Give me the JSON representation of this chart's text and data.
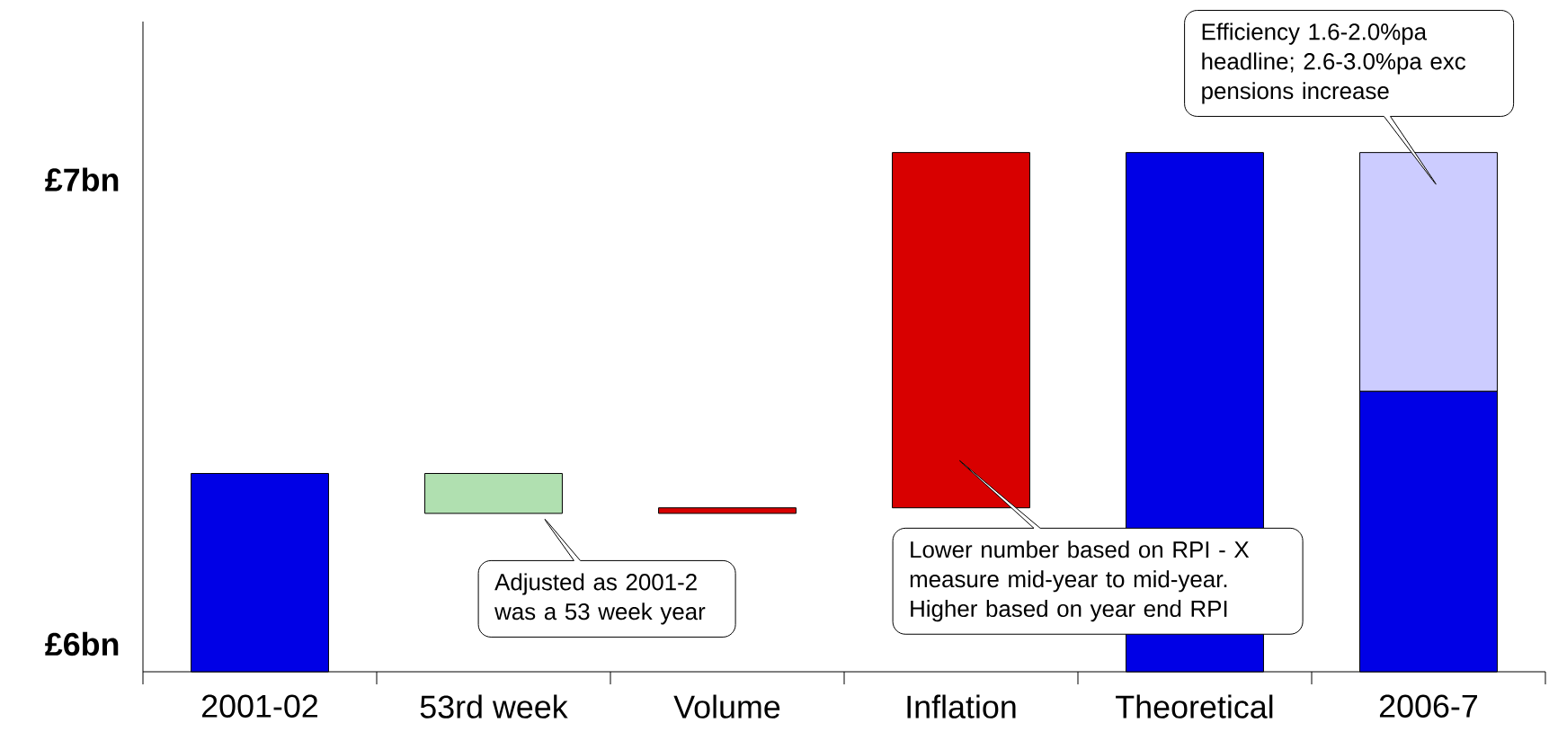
{
  "chart_data": {
    "type": "bar",
    "categories": [
      "2001-02",
      "53rd week",
      "Volume",
      "Inflation",
      "Theoretical",
      "2006-7"
    ],
    "ylim": [
      5.94,
      7.34
    ],
    "yticks": [
      {
        "value": 6,
        "label": "£6bn"
      },
      {
        "value": 7,
        "label": "£7bn"
      }
    ],
    "series": [
      {
        "values": [
          6.367,
          -0.086,
          0.012,
          0.765,
          7.058,
          6.544
        ],
        "colors": [
          "#0000e6",
          "#b0e0b0",
          "#d80000",
          "#d80000",
          "#0000e6",
          "#0000e6"
        ],
        "base": [
          null,
          6.367,
          6.281,
          6.293,
          null,
          null
        ]
      },
      {
        "values": [
          null,
          null,
          null,
          null,
          null,
          0.514
        ],
        "color": "#ccccff",
        "base": [
          null,
          null,
          null,
          null,
          null,
          6.544
        ]
      }
    ],
    "annotations": [
      "Adjusted as 2001-2 was a 53 week year",
      "Lower number based on RPI - X measure mid-year to mid-year. Higher based on year end RPI",
      "Efficiency 1.6-2.0%pa headline; 2.6-3.0%pa exc pensions increase"
    ]
  }
}
